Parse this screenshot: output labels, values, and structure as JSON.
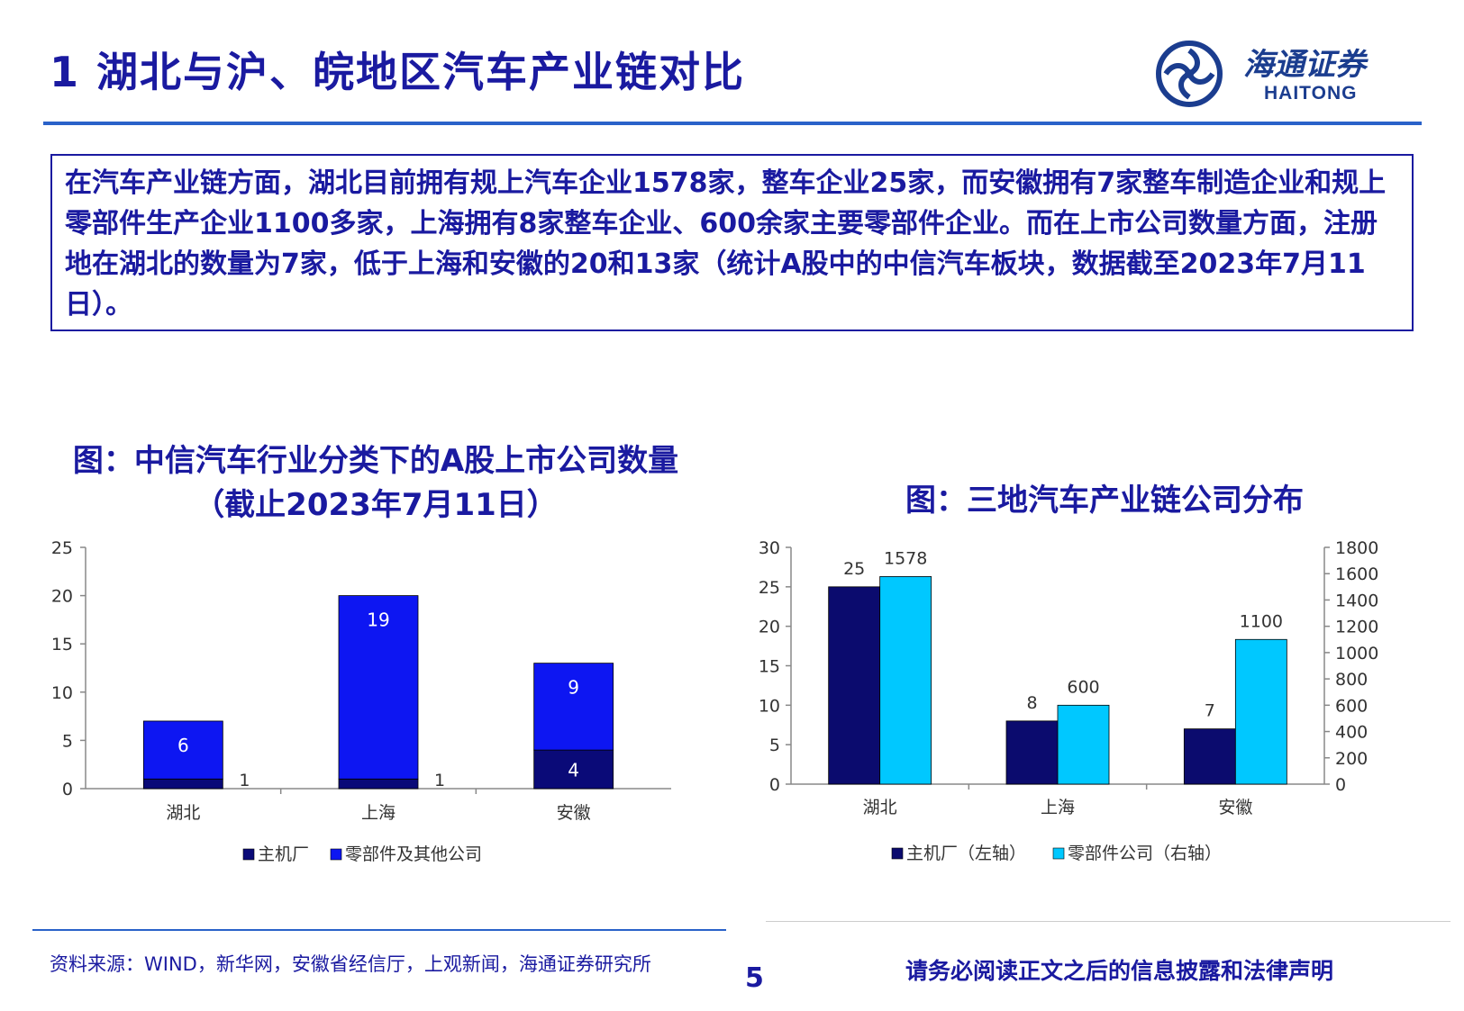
{
  "header": {
    "title": "1 湖北与沪、皖地区汽车产业链对比",
    "logo_cn": "海通证券",
    "logo_en": "HAITONG",
    "logo_icon": "haitong-swirl-logo-icon"
  },
  "summary": "在汽车产业链方面，湖北目前拥有规上汽车企业1578家，整车企业25家，而安徽拥有7家整车制造企业和规上零部件生产企业1100多家，上海拥有8家整车企业、600余家主要零部件企业。而在上市公司数量方面，注册地在湖北的数量为7家，低于上海和安徽的20和13家（统计A股中的中信汽车板块，数据截至2023年7月11日）。",
  "chart_left_title_line1": "图：中信汽车行业分类下的A股上市公司数量",
  "chart_left_title_line2": "（截止2023年7月11日）",
  "chart_right_title": "图：三地汽车产业链公司分布",
  "colors": {
    "dark_navy": "#0a0a78",
    "bright_blue": "#0d16f2",
    "dark_navy_right": "#0b0b6e",
    "cyan": "#00c8ff",
    "accent": "#1a1aa0"
  },
  "chart_data": [
    {
      "type": "bar",
      "stacked": true,
      "categories": [
        "湖北",
        "上海",
        "安徽"
      ],
      "series": [
        {
          "name": "主机厂",
          "values": [
            1,
            1,
            4
          ]
        },
        {
          "name": "零部件及其他公司",
          "values": [
            6,
            19,
            9
          ]
        }
      ],
      "ylim": [
        0,
        25
      ],
      "yticks": [
        0,
        5,
        10,
        15,
        20,
        25
      ],
      "legend": "bottom"
    },
    {
      "type": "bar",
      "grouped": true,
      "dual_axis": true,
      "categories": [
        "湖北",
        "上海",
        "安徽"
      ],
      "series": [
        {
          "name": "主机厂（左轴）",
          "values": [
            25,
            8,
            7
          ],
          "axis": "left"
        },
        {
          "name": "零部件公司（右轴）",
          "values": [
            1578,
            600,
            1100
          ],
          "axis": "right"
        }
      ],
      "ylim_left": [
        0,
        30
      ],
      "yticks_left": [
        0,
        5,
        10,
        15,
        20,
        25,
        30
      ],
      "ylim_right": [
        0,
        1800
      ],
      "yticks_right": [
        0,
        200,
        400,
        600,
        800,
        1000,
        1200,
        1400,
        1600,
        1800
      ],
      "legend": "bottom"
    }
  ],
  "footer": {
    "source": "资料来源：WIND，新华网，安徽省经信厅，上观新闻，海通证券研究所",
    "page": "5",
    "disclaimer": "请务必阅读正文之后的信息披露和法律声明"
  }
}
